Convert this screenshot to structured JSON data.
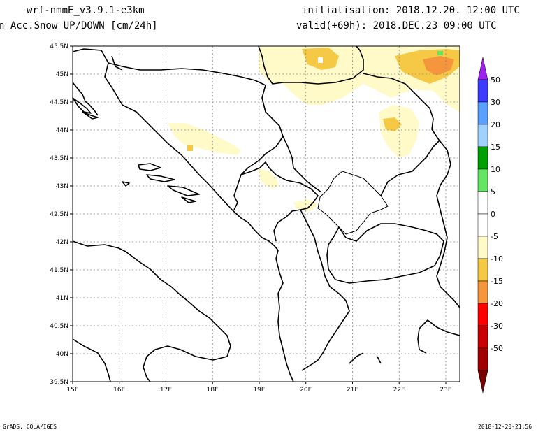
{
  "header": {
    "model": "wrf-nmmE_v3.9.1-e3km",
    "field": "n Acc.Snow UP/DOWN [cm/24h]",
    "init": "initialisation: 2018.12.20.  12:00 UTC",
    "valid": "valid(+69h): 2018.DEC.23 09:00 UTC"
  },
  "footer": {
    "credit": "GrADS: COLA/IGES",
    "timestamp": "2018-12-20-21:56"
  },
  "map": {
    "lat_labels": [
      "45.5N",
      "45N",
      "44.5N",
      "44N",
      "43.5N",
      "43N",
      "42.5N",
      "42N",
      "41.5N",
      "41N",
      "40.5N",
      "40N",
      "39.5N"
    ],
    "lon_labels": [
      "15E",
      "16E",
      "17E",
      "18E",
      "19E",
      "20E",
      "21E",
      "22E",
      "23E"
    ],
    "lat_range": [
      39.5,
      45.5
    ],
    "lon_range": [
      15.0,
      23.3
    ],
    "grid": true
  },
  "colorbar": {
    "labels": [
      "50",
      "30",
      "20",
      "15",
      "10",
      "5",
      "0",
      "-5",
      "-10",
      "-15",
      "-20",
      "-30",
      "-50"
    ],
    "colors": [
      "#a020f0",
      "#3c3cff",
      "#5aa0ff",
      "#a0d2ff",
      "#00a000",
      "#64e664",
      "#ffffff",
      "#ffffff",
      "#fffac8",
      "#f5c846",
      "#f5963c",
      "#ff0000",
      "#c80000",
      "#a00000",
      "#780000"
    ]
  }
}
